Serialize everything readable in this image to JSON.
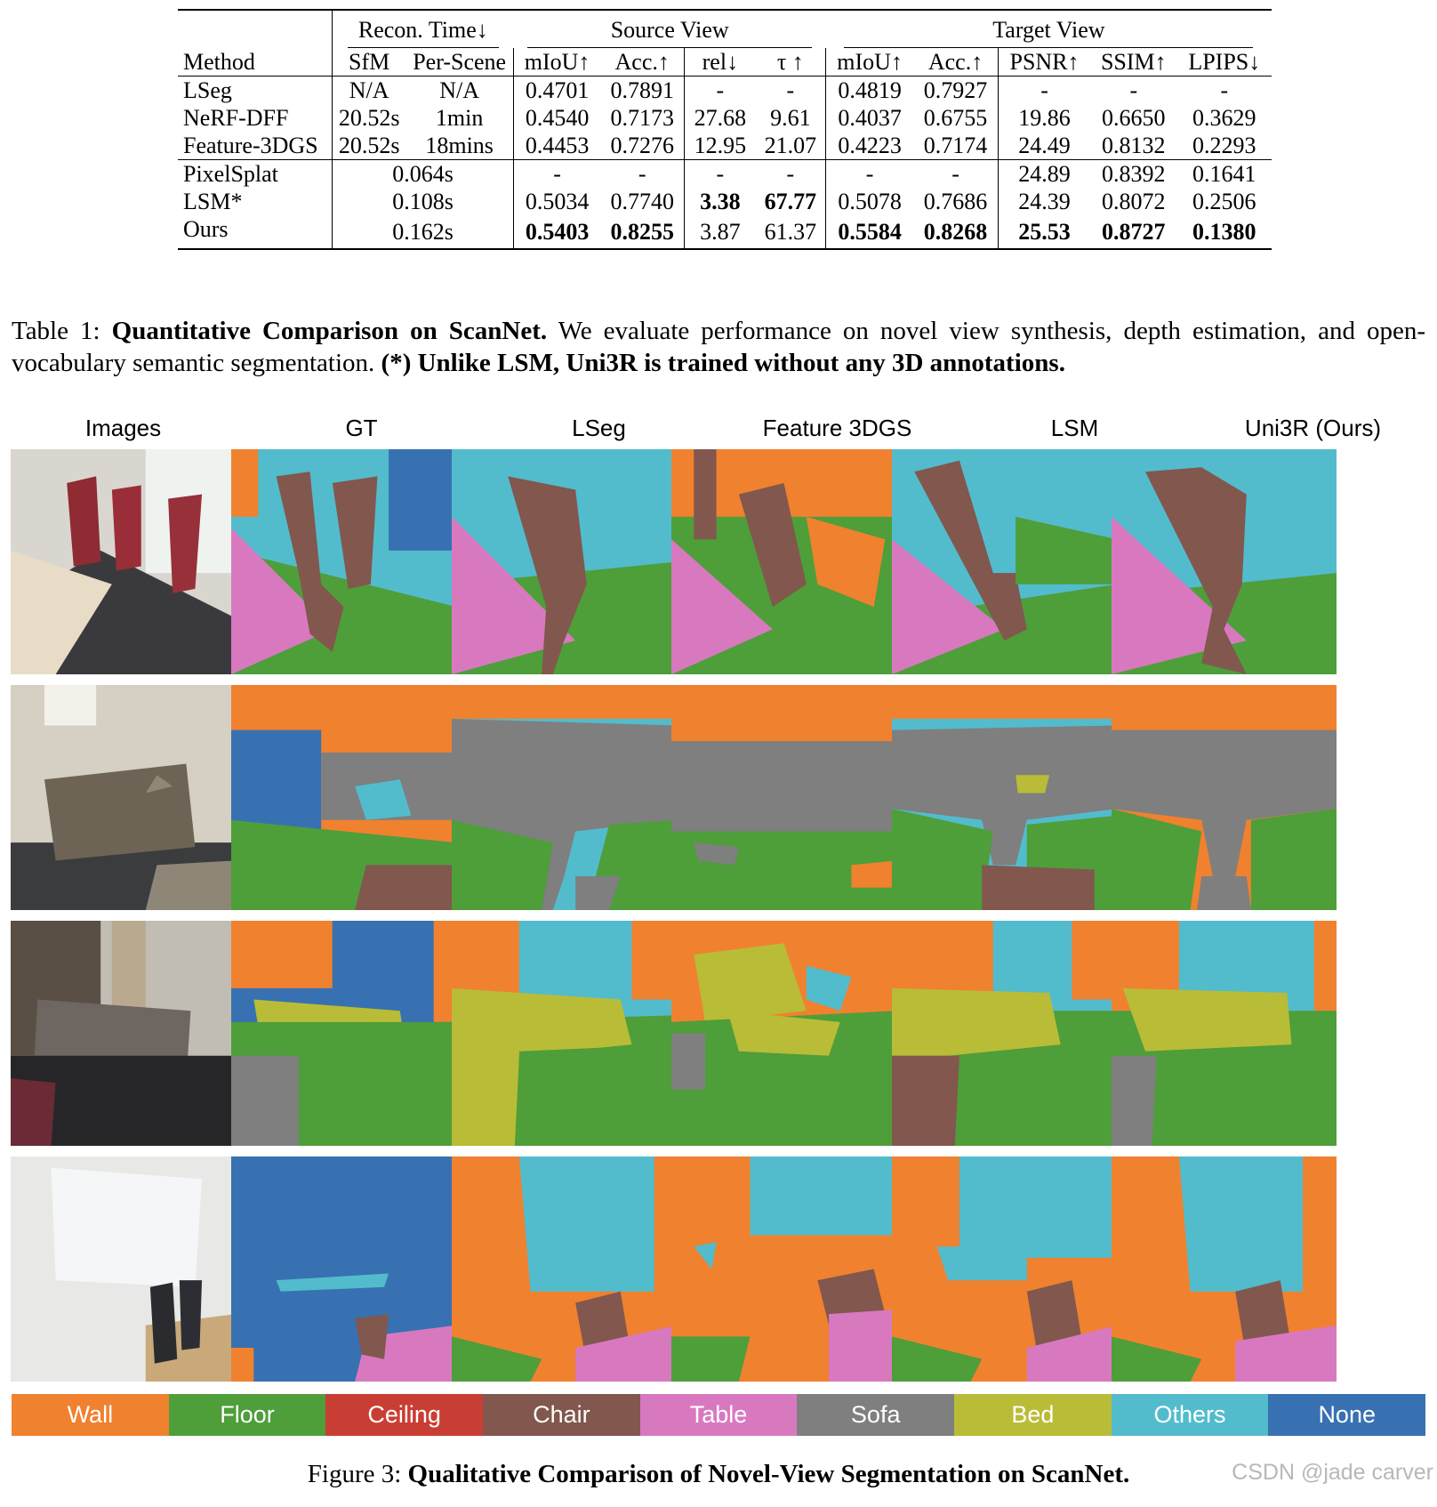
{
  "table": {
    "group_headers": {
      "recon_time": "Recon. Time↓",
      "source_view": "Source View",
      "target_view": "Target View"
    },
    "column_headers": [
      "Method",
      "SfM",
      "Per-Scene",
      "mIoU↑",
      "Acc.↑",
      "rel↓",
      "τ ↑",
      "mIoU↑",
      "Acc.↑",
      "PSNR↑",
      "SSIM↑",
      "LPIPS↓"
    ],
    "rows_group1": [
      {
        "method": "LSeg",
        "sfm": "N/A",
        "per_scene": "N/A",
        "src_miou": "0.4701",
        "src_acc": "0.7891",
        "rel": "-",
        "tau": "-",
        "tgt_miou": "0.4819",
        "tgt_acc": "0.7927",
        "psnr": "-",
        "ssim": "-",
        "lpips": "-"
      },
      {
        "method": "NeRF-DFF",
        "sfm": "20.52s",
        "per_scene": "1min",
        "src_miou": "0.4540",
        "src_acc": "0.7173",
        "rel": "27.68",
        "tau": "9.61",
        "tgt_miou": "0.4037",
        "tgt_acc": "0.6755",
        "psnr": "19.86",
        "ssim": "0.6650",
        "lpips": "0.3629"
      },
      {
        "method": "Feature-3DGS",
        "sfm": "20.52s",
        "per_scene": "18mins",
        "src_miou": "0.4453",
        "src_acc": "0.7276",
        "rel": "12.95",
        "tau": "21.07",
        "tgt_miou": "0.4223",
        "tgt_acc": "0.7174",
        "psnr": "24.49",
        "ssim": "0.8132",
        "lpips": "0.2293"
      }
    ],
    "rows_group2": [
      {
        "method": "PixelSplat",
        "time": "0.064s",
        "src_miou": "-",
        "src_acc": "-",
        "rel": "-",
        "tau": "-",
        "tgt_miou": "-",
        "tgt_acc": "-",
        "psnr": "24.89",
        "ssim": "0.8392",
        "lpips": "0.1641"
      },
      {
        "method": "LSM*",
        "time": "0.108s",
        "src_miou": "0.5034",
        "src_acc": "0.7740",
        "rel": "3.38",
        "tau": "67.77",
        "tgt_miou": "0.5078",
        "tgt_acc": "0.7686",
        "psnr": "24.39",
        "ssim": "0.8072",
        "lpips": "0.2506"
      },
      {
        "method": "Ours",
        "time": "0.162s",
        "src_miou": "0.5403",
        "src_acc": "0.8255",
        "rel": "3.87",
        "tau": "61.37",
        "tgt_miou": "0.5584",
        "tgt_acc": "0.8268",
        "psnr": "25.53",
        "ssim": "0.8727",
        "lpips": "0.1380"
      }
    ]
  },
  "table_caption": {
    "label": "Table 1:",
    "title": "Quantitative Comparison on ScanNet.",
    "text": "We evaluate performance on novel view synthesis, depth estimation, and open-vocabulary semantic segmentation.",
    "note": "(*) Unlike LSM, Uni3R is trained without any 3D annotations."
  },
  "figure": {
    "column_titles": [
      "Images",
      "GT",
      "LSeg",
      "Feature 3DGS",
      "LSM",
      "Uni3R (Ours)"
    ],
    "legend": [
      {
        "label": "Wall",
        "color": "#f0812f"
      },
      {
        "label": "Floor",
        "color": "#4e9e3a"
      },
      {
        "label": "Ceiling",
        "color": "#c93e34"
      },
      {
        "label": "Chair",
        "color": "#82574e"
      },
      {
        "label": "Table",
        "color": "#d879c0"
      },
      {
        "label": "Sofa",
        "color": "#7f7f7f"
      },
      {
        "label": "Bed",
        "color": "#b9bc36"
      },
      {
        "label": "Others",
        "color": "#52bccd"
      },
      {
        "label": "None",
        "color": "#3771b1"
      }
    ],
    "caption_label": "Figure 3:",
    "caption_title": "Qualitative Comparison of Novel-View Segmentation on ScanNet."
  },
  "watermark": "CSDN @jade carver"
}
